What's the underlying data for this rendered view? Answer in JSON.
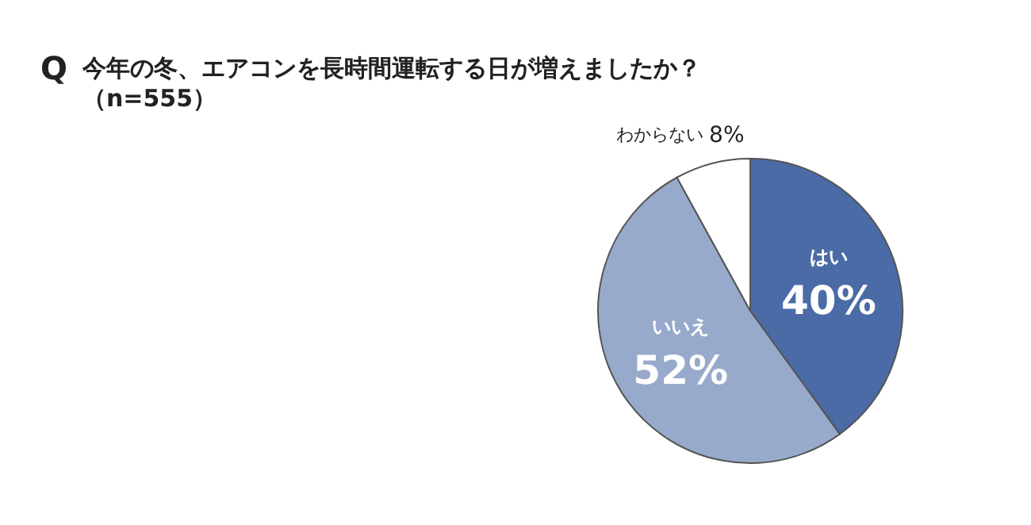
{
  "chart_data": {
    "type": "pie",
    "title": "今年の冬、エアコンを長時間運転する日が増えましたか？",
    "subtitle": "（n=555）",
    "annotations": [
      "Q"
    ],
    "categories": [
      "はい",
      "いいえ",
      "わからない"
    ],
    "values": [
      40,
      52,
      8
    ],
    "value_labels": [
      "40%",
      "52%",
      "8%"
    ],
    "colors": [
      "#4a6ba6",
      "#98aacb",
      "#ffffff"
    ],
    "legend": false
  }
}
